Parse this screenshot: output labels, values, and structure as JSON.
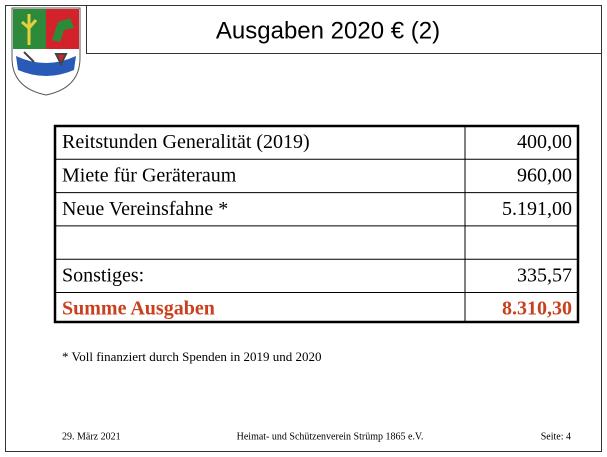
{
  "header": {
    "title": "Ausgaben 2020 € (2)"
  },
  "table": {
    "rows": [
      [
        "Reitstunden Generalität (2019)",
        "400,00"
      ],
      [
        "Miete für Geräteraum",
        "960,00"
      ],
      [
        "Neue Vereinsfahne *",
        "5.191,00"
      ]
    ],
    "after_blank": [
      [
        "Sonstiges:",
        "335,57"
      ]
    ],
    "total": [
      "Summe Ausgaben",
      "8.310,30"
    ]
  },
  "footnote": "* Voll finanziert durch Spenden in 2019 und 2020",
  "footer": {
    "date": "29. März 2021",
    "organization": "Heimat- und Schützenverein Strümp 1865 e.V.",
    "page": "Seite: 4"
  }
}
